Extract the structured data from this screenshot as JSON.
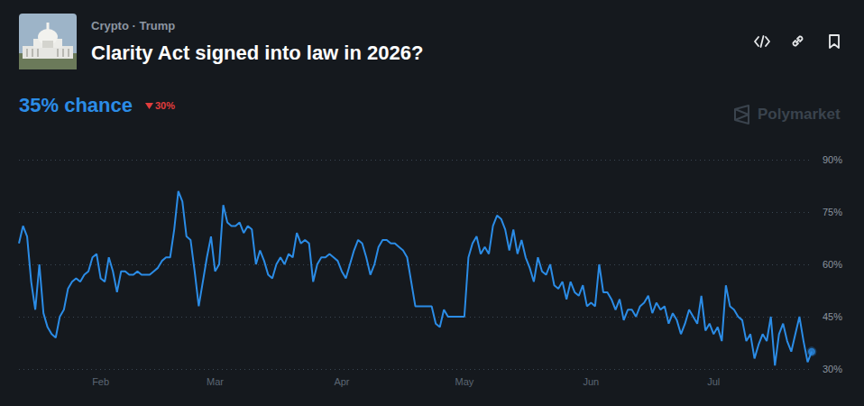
{
  "chart_data": {
    "type": "line",
    "title": "Clarity Act signed into law in 2026?",
    "subtitle": "Crypto · Trump",
    "annotations": {
      "chance": "35% chance",
      "change": "30%",
      "brand": "Polymarket"
    },
    "categories": [
      null,
      null,
      null,
      null,
      null,
      null,
      null,
      null,
      null,
      null,
      null,
      null,
      null,
      null,
      null,
      null,
      null,
      null,
      null,
      null,
      "Feb",
      null,
      null,
      null,
      null,
      null,
      null,
      null,
      null,
      null,
      null,
      null,
      null,
      null,
      null,
      null,
      null,
      null,
      null,
      null,
      null,
      null,
      null,
      null,
      null,
      null,
      null,
      null,
      "Mar",
      null,
      null,
      null,
      null,
      null,
      null,
      null,
      null,
      null,
      null,
      null,
      null,
      null,
      null,
      null,
      null,
      null,
      null,
      null,
      null,
      null,
      null,
      null,
      null,
      null,
      null,
      null,
      null,
      null,
      null,
      "Apr",
      null,
      null,
      null,
      null,
      null,
      null,
      null,
      null,
      null,
      null,
      null,
      null,
      null,
      null,
      null,
      null,
      null,
      null,
      null,
      null,
      null,
      null,
      null,
      null,
      null,
      null,
      null,
      null,
      null,
      "May",
      null,
      null,
      null,
      null,
      null,
      null,
      null,
      null,
      null,
      null,
      null,
      null,
      null,
      null,
      null,
      null,
      null,
      null,
      null,
      null,
      null,
      null,
      null,
      null,
      null,
      null,
      null,
      null,
      null,
      null,
      "Jun",
      null,
      null,
      null,
      null,
      null,
      null,
      null,
      null,
      null,
      null,
      null,
      null,
      null,
      null,
      null,
      null,
      null,
      null,
      null,
      null,
      null,
      null,
      null,
      null,
      null,
      null,
      null,
      null,
      null,
      "Jul",
      null,
      null,
      null,
      null,
      null,
      null,
      null,
      null,
      null,
      null,
      null,
      null,
      null,
      null,
      null,
      null,
      null,
      null,
      null,
      null,
      null,
      null,
      null,
      null
    ],
    "values": [
      66,
      71,
      68,
      55,
      47,
      60,
      46,
      42,
      40,
      39,
      45,
      47,
      53,
      55,
      56,
      55,
      57,
      58,
      62,
      63,
      56,
      55,
      62,
      58,
      52,
      58,
      58,
      57,
      57,
      58,
      57,
      57,
      57,
      58,
      59,
      61,
      62,
      62,
      70,
      81,
      78,
      68,
      67,
      58,
      48,
      55,
      62,
      68,
      58,
      60,
      77,
      72,
      71,
      71,
      72,
      69,
      71,
      70,
      60,
      64,
      61,
      57,
      56,
      60,
      62,
      60,
      63,
      62,
      69,
      66,
      67,
      66,
      55,
      60,
      62,
      62,
      63,
      62,
      61,
      58,
      56,
      60,
      64,
      67,
      66,
      62,
      57,
      60,
      65,
      67,
      67,
      66,
      66,
      65,
      64,
      62,
      55,
      48,
      48,
      48,
      48,
      48,
      43,
      42,
      47,
      45,
      45,
      45,
      45,
      45,
      62,
      66,
      68,
      63,
      65,
      63,
      71,
      74,
      73,
      70,
      64,
      70,
      63,
      67,
      62,
      59,
      55,
      62,
      58,
      57,
      60,
      54,
      53,
      55,
      50,
      55,
      52,
      51,
      54,
      48,
      49,
      48,
      60,
      52,
      52,
      50,
      47,
      50,
      44,
      47,
      47,
      45,
      48,
      49,
      51,
      46,
      49,
      47,
      48,
      43,
      46,
      44,
      40,
      43,
      47,
      45,
      43,
      51,
      41,
      43,
      40,
      42,
      38,
      54,
      48,
      47,
      45,
      44,
      38,
      40,
      33,
      37,
      40,
      38,
      45,
      31,
      40,
      43,
      38,
      35,
      40,
      45,
      38,
      32,
      35
    ],
    "color": "#2b8ce6",
    "ylim": [
      30,
      90
    ],
    "yticks": [
      {
        "value": 30,
        "label": "30%"
      },
      {
        "value": 45,
        "label": "45%"
      },
      {
        "value": 60,
        "label": "60%"
      },
      {
        "value": 75,
        "label": "75%"
      },
      {
        "value": 90,
        "label": "90%"
      }
    ],
    "grid": true,
    "marker": "last"
  }
}
